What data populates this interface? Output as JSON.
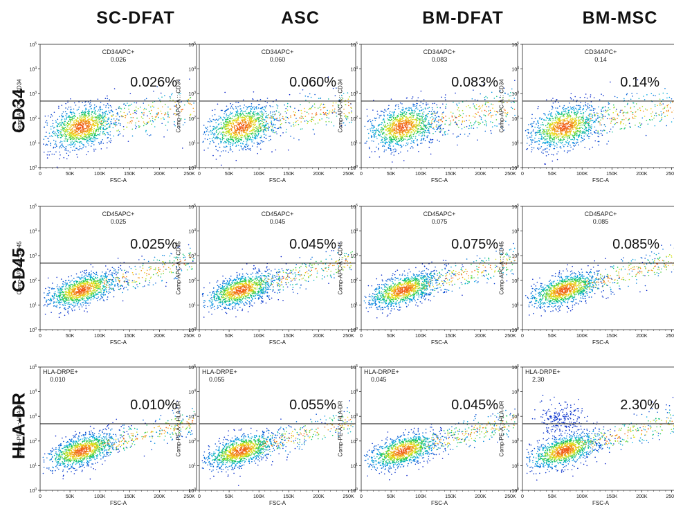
{
  "columns": [
    "SC-DFAT",
    "ASC",
    "BM-DFAT",
    "BM-MSC"
  ],
  "rows": [
    {
      "marker": "CD34",
      "ylabel": "Comp-APC-A :: CD34",
      "gate": "CD34APC+",
      "gate_pos": "top-center",
      "values": [
        "0.026",
        "0.060",
        "0.083",
        "0.14"
      ],
      "pct": [
        "0.026%",
        "0.060%",
        "0.083%",
        "0.14%"
      ]
    },
    {
      "marker": "CD45",
      "ylabel": "Comp-APC-A :: CD45",
      "gate": "CD45APC+",
      "gate_pos": "top-center",
      "values": [
        "0.025",
        "0.045",
        "0.075",
        "0.085"
      ],
      "pct": [
        "0.025%",
        "0.045%",
        "0.075%",
        "0.085%"
      ]
    },
    {
      "marker": "HLA-DR",
      "ylabel": "Comp-PE-A :: HLA-DR",
      "gate": "HLA-DRPE+",
      "gate_pos": "top-left",
      "values": [
        "0.010",
        "0.055",
        "0.045",
        "2.30"
      ],
      "pct": [
        "0.010%",
        "0.055%",
        "0.045%",
        "2.30%"
      ]
    }
  ],
  "chart_data": {
    "type": "scatter",
    "xlabel": "FSC-A",
    "x_ticks": [
      "0",
      "50K",
      "100K",
      "150K",
      "200K",
      "250K"
    ],
    "xlim": [
      0,
      262144
    ],
    "y_scale": "log",
    "y_ticks": [
      "10^0",
      "10^1",
      "10^2",
      "10^3",
      "10^4",
      "10^5"
    ],
    "ylim": [
      1,
      100000
    ],
    "gate_threshold": 500,
    "panels": [
      {
        "row": "CD34",
        "column": "SC-DFAT",
        "positive_pct": 0.026
      },
      {
        "row": "CD34",
        "column": "ASC",
        "positive_pct": 0.06
      },
      {
        "row": "CD34",
        "column": "BM-DFAT",
        "positive_pct": 0.083
      },
      {
        "row": "CD34",
        "column": "BM-MSC",
        "positive_pct": 0.14
      },
      {
        "row": "CD45",
        "column": "SC-DFAT",
        "positive_pct": 0.025
      },
      {
        "row": "CD45",
        "column": "ASC",
        "positive_pct": 0.045
      },
      {
        "row": "CD45",
        "column": "BM-DFAT",
        "positive_pct": 0.075
      },
      {
        "row": "CD45",
        "column": "BM-MSC",
        "positive_pct": 0.085
      },
      {
        "row": "HLA-DR",
        "column": "SC-DFAT",
        "positive_pct": 0.01
      },
      {
        "row": "HLA-DR",
        "column": "ASC",
        "positive_pct": 0.055
      },
      {
        "row": "HLA-DR",
        "column": "BM-DFAT",
        "positive_pct": 0.045
      },
      {
        "row": "HLA-DR",
        "column": "BM-MSC",
        "positive_pct": 2.3
      }
    ]
  }
}
